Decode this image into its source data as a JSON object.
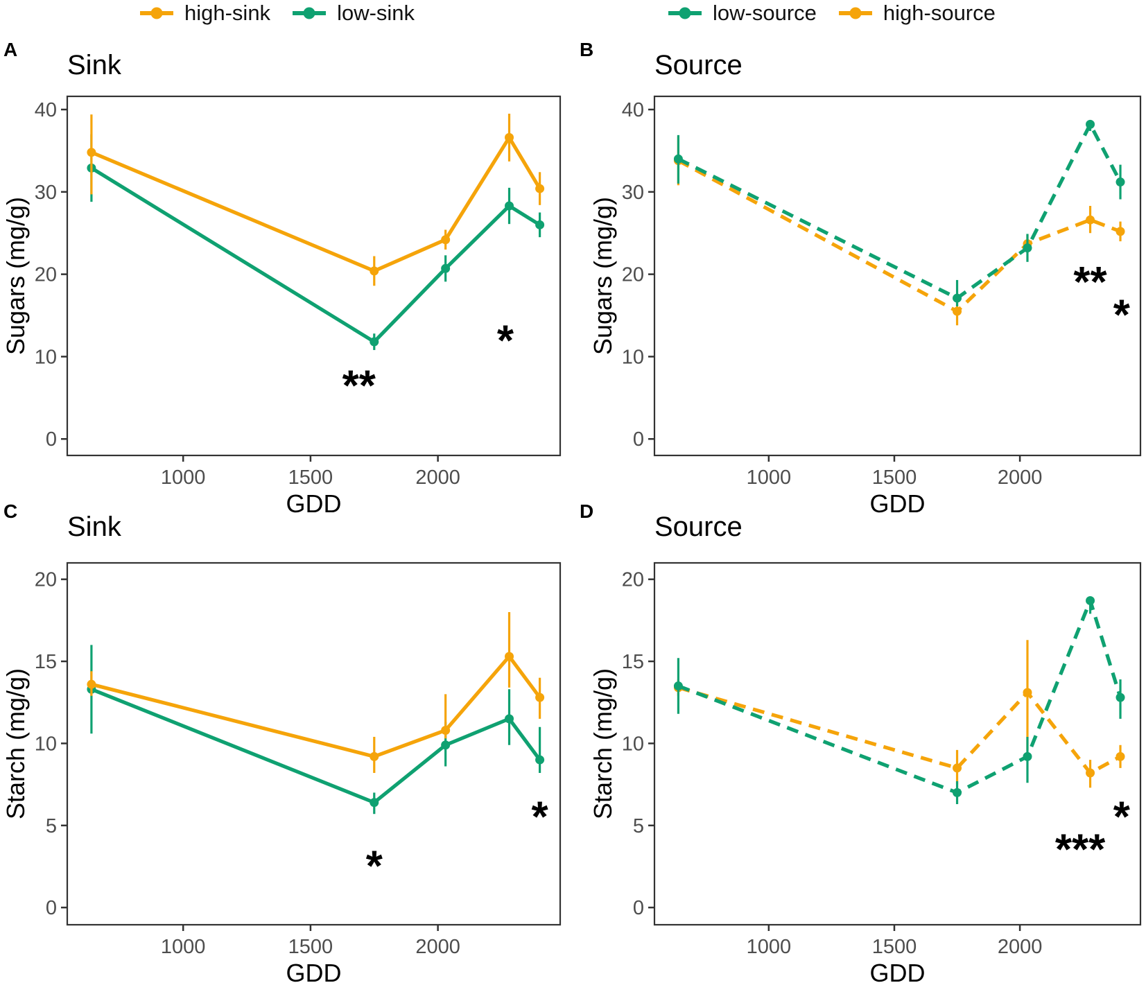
{
  "colors": {
    "orange": "#F5A40A",
    "green": "#0FA171",
    "axis_text": "#4d4d4d",
    "axis_line": "#333333",
    "annotation": "#000000"
  },
  "legends": [
    {
      "name": "sink-legend",
      "items": [
        {
          "label": "high-sink",
          "color_key": "orange"
        },
        {
          "label": "low-sink",
          "color_key": "green"
        }
      ]
    },
    {
      "name": "source-legend",
      "items": [
        {
          "label": "low-source",
          "color_key": "green"
        },
        {
          "label": "high-source",
          "color_key": "orange"
        }
      ]
    }
  ],
  "chart_data": [
    {
      "type": "line",
      "letter": "A",
      "title": "Sink",
      "xlabel": "GDD",
      "ylabel": "Sugars (mg/g)",
      "line_style": "solid",
      "x": [
        640,
        1750,
        2030,
        2280,
        2400
      ],
      "xticks": [
        1000,
        1500,
        2000
      ],
      "xlim": [
        545,
        2480
      ],
      "yticks": [
        0,
        10,
        20,
        30,
        40
      ],
      "ylim": [
        -2,
        41.6
      ],
      "grid": false,
      "series": [
        {
          "name": "low-sink",
          "color_key": "green",
          "values": [
            32.9,
            11.8,
            20.7,
            28.3,
            26.0
          ],
          "err_lo": [
            28.8,
            10.8,
            19.1,
            26.1,
            24.5
          ],
          "err_hi": [
            37.0,
            12.8,
            22.3,
            30.5,
            27.5
          ]
        },
        {
          "name": "high-sink",
          "color_key": "orange",
          "values": [
            34.8,
            20.4,
            24.2,
            36.6,
            30.4
          ],
          "err_lo": [
            29.7,
            18.6,
            23.0,
            33.7,
            28.4
          ],
          "err_hi": [
            39.4,
            22.2,
            25.4,
            39.5,
            32.4
          ]
        }
      ],
      "annotations": [
        {
          "x": 1690,
          "y": 6.4,
          "label": "**"
        },
        {
          "x": 2265,
          "y": 11.9,
          "label": "*"
        }
      ]
    },
    {
      "type": "line",
      "letter": "B",
      "title": "Source",
      "xlabel": "GDD",
      "ylabel": "Sugars (mg/g)",
      "line_style": "dashed",
      "x": [
        640,
        1750,
        2030,
        2280,
        2400
      ],
      "xticks": [
        1000,
        1500,
        2000
      ],
      "xlim": [
        545,
        2480
      ],
      "yticks": [
        0,
        10,
        20,
        30,
        40
      ],
      "ylim": [
        -2,
        41.6
      ],
      "grid": false,
      "series": [
        {
          "name": "high-source",
          "color_key": "orange",
          "values": [
            33.8,
            15.5,
            23.7,
            26.6,
            25.2
          ],
          "err_lo": [
            30.8,
            13.8,
            22.6,
            25.0,
            24.0
          ],
          "err_hi": [
            36.7,
            17.1,
            24.8,
            28.3,
            26.4
          ]
        },
        {
          "name": "low-source",
          "color_key": "green",
          "values": [
            34.0,
            17.1,
            23.2,
            38.2,
            31.2
          ],
          "err_lo": [
            31.0,
            16.1,
            21.5,
            37.4,
            29.1
          ],
          "err_hi": [
            36.9,
            19.3,
            24.9,
            38.7,
            33.3
          ]
        }
      ],
      "annotations": [
        {
          "x": 2280,
          "y": 19.0,
          "label": "**"
        },
        {
          "x": 2405,
          "y": 15.0,
          "label": "*"
        }
      ]
    },
    {
      "type": "line",
      "letter": "C",
      "title": "Sink",
      "xlabel": "GDD",
      "ylabel": "Starch (mg/g)",
      "line_style": "solid",
      "x": [
        640,
        1750,
        2030,
        2280,
        2400
      ],
      "xticks": [
        1000,
        1500,
        2000
      ],
      "xlim": [
        545,
        2480
      ],
      "yticks": [
        0,
        5,
        10,
        15,
        20
      ],
      "ylim": [
        -1.05,
        21.0
      ],
      "grid": false,
      "series": [
        {
          "name": "low-sink",
          "color_key": "green",
          "values": [
            13.3,
            6.4,
            9.9,
            11.5,
            9.0
          ],
          "err_lo": [
            10.6,
            5.7,
            8.6,
            9.9,
            8.2
          ],
          "err_hi": [
            16.0,
            7.0,
            11.3,
            13.3,
            11.0
          ]
        },
        {
          "name": "high-sink",
          "color_key": "orange",
          "values": [
            13.6,
            9.2,
            10.8,
            15.3,
            12.8
          ],
          "err_lo": [
            12.9,
            8.2,
            10.3,
            13.4,
            11.5
          ],
          "err_hi": [
            14.4,
            10.4,
            13.0,
            18.0,
            14.0
          ]
        }
      ],
      "annotations": [
        {
          "x": 1750,
          "y": 2.5,
          "label": "*"
        },
        {
          "x": 2400,
          "y": 5.5,
          "label": "*"
        }
      ]
    },
    {
      "type": "line",
      "letter": "D",
      "title": "Source",
      "xlabel": "GDD",
      "ylabel": "Starch (mg/g)",
      "line_style": "dashed",
      "x": [
        640,
        1750,
        2030,
        2280,
        2400
      ],
      "xticks": [
        1000,
        1500,
        2000
      ],
      "xlim": [
        545,
        2480
      ],
      "yticks": [
        0,
        5,
        10,
        15,
        20
      ],
      "ylim": [
        -1.05,
        21.0
      ],
      "grid": false,
      "series": [
        {
          "name": "high-source",
          "color_key": "orange",
          "values": [
            13.4,
            8.5,
            13.1,
            8.2,
            9.2
          ],
          "err_lo": [
            12.9,
            7.5,
            9.6,
            7.3,
            8.5
          ],
          "err_hi": [
            13.9,
            9.6,
            16.3,
            9.0,
            9.9
          ]
        },
        {
          "name": "low-source",
          "color_key": "green",
          "values": [
            13.5,
            7.0,
            9.2,
            18.7,
            12.8
          ],
          "err_lo": [
            11.8,
            6.3,
            7.6,
            17.9,
            11.5
          ],
          "err_hi": [
            15.2,
            7.7,
            10.4,
            18.9,
            13.9
          ]
        }
      ],
      "annotations": [
        {
          "x": 2240,
          "y": 3.5,
          "label": "***"
        },
        {
          "x": 2405,
          "y": 5.5,
          "label": "*"
        }
      ]
    }
  ]
}
